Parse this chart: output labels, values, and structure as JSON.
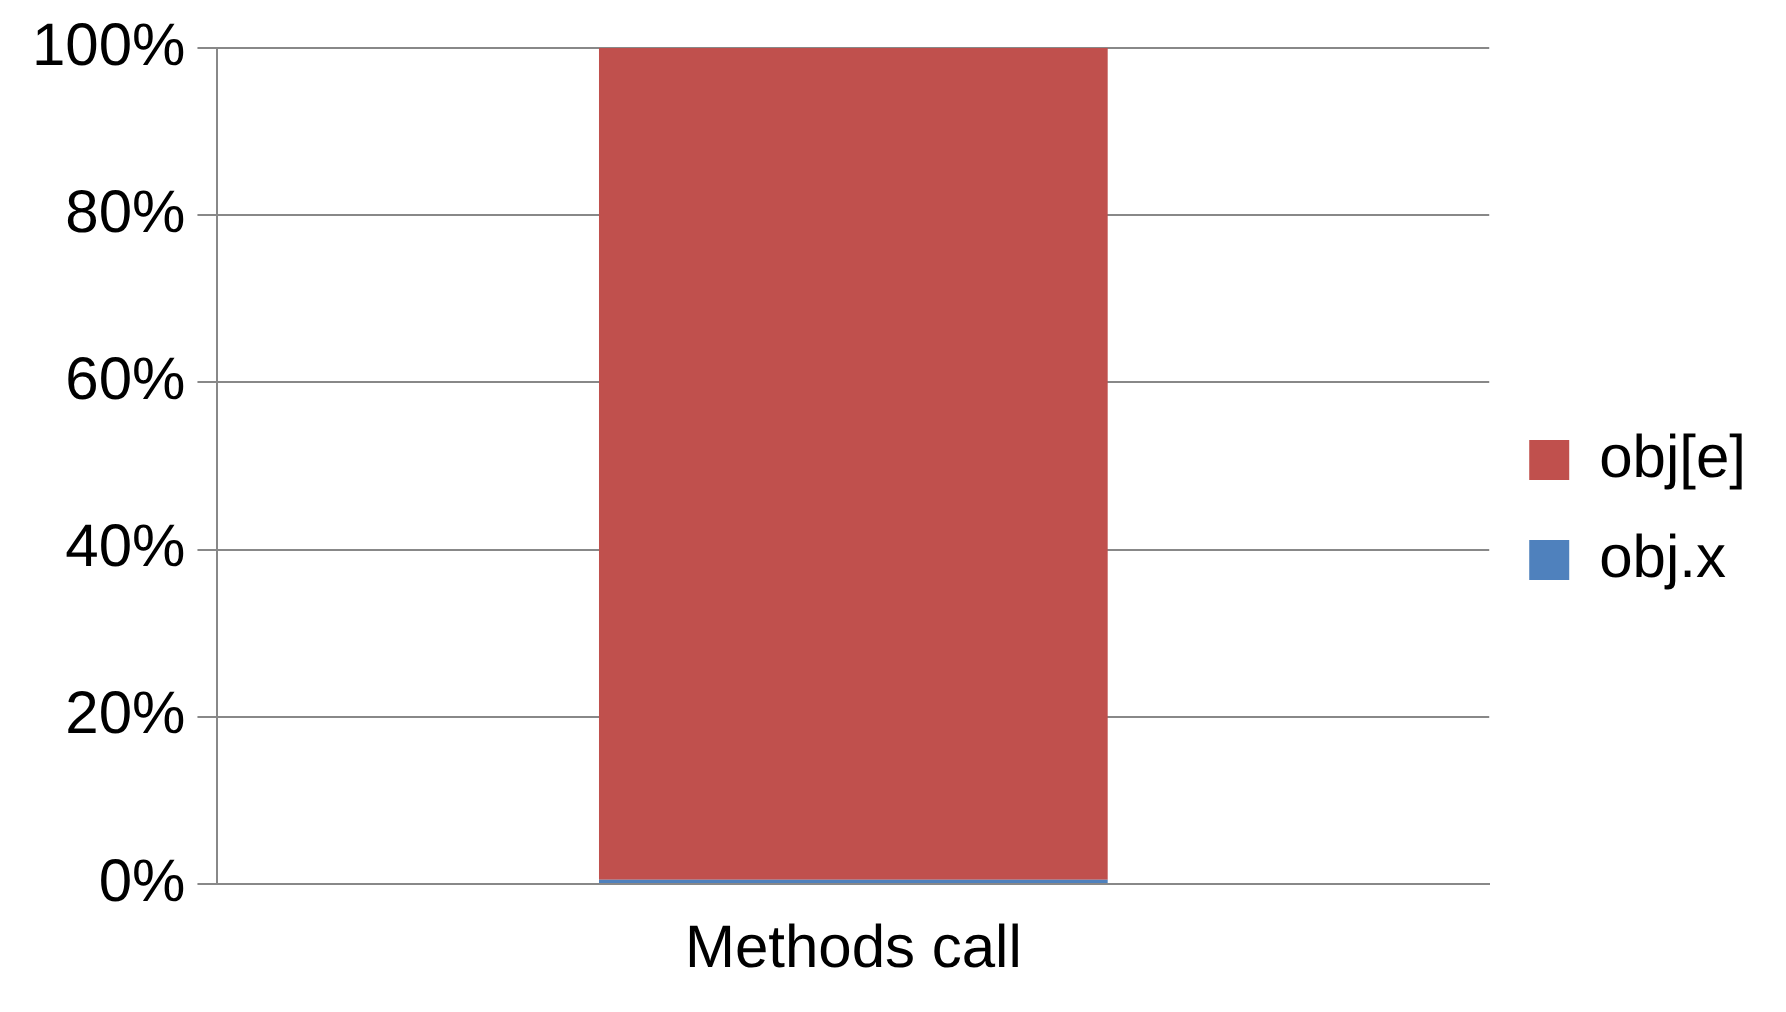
{
  "chart_data": {
    "type": "bar",
    "stacked": true,
    "categories": [
      "Methods call"
    ],
    "series": [
      {
        "name": "obj.x",
        "color": "#4f81bd",
        "values": [
          0.5
        ]
      },
      {
        "name": "obj[e]",
        "color": "#c0504d",
        "values": [
          99.5
        ]
      }
    ],
    "ylim": [
      0,
      100
    ],
    "yticks": [
      {
        "value": 0,
        "label": "0%"
      },
      {
        "value": 20,
        "label": "20%"
      },
      {
        "value": 40,
        "label": "40%"
      },
      {
        "value": 60,
        "label": "60%"
      },
      {
        "value": 80,
        "label": "80%"
      },
      {
        "value": 100,
        "label": "100%"
      }
    ],
    "grid": "y",
    "legend": "right"
  }
}
